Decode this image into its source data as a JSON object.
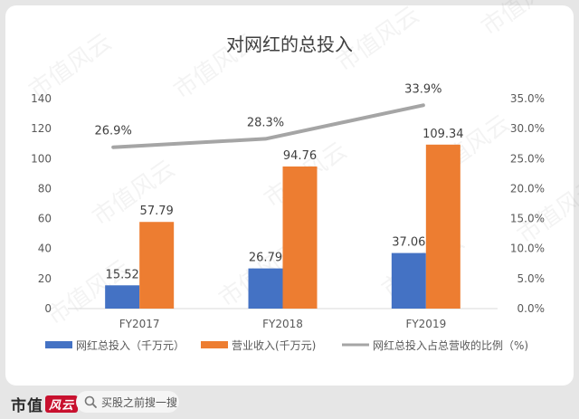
{
  "chart_data": {
    "type": "bar",
    "title": "对网红的总投入",
    "categories": [
      "FY2017",
      "FY2018",
      "FY2019"
    ],
    "series": [
      {
        "name": "网红总投入（千万元）",
        "type": "bar",
        "axis": "left",
        "color": "#4472c4",
        "values": [
          15.52,
          26.79,
          37.06
        ],
        "labels": [
          "15.52",
          "26.79",
          "37.06"
        ]
      },
      {
        "name": "营业收入(千万元)",
        "type": "bar",
        "axis": "left",
        "color": "#ed7d31",
        "values": [
          57.79,
          94.76,
          109.34
        ],
        "labels": [
          "57.79",
          "94.76",
          "109.34"
        ]
      },
      {
        "name": "网红总投入占总营收的比例（%)",
        "type": "line",
        "axis": "right",
        "color": "#a5a5a5",
        "values": [
          26.9,
          28.3,
          33.9
        ],
        "labels": [
          "26.9%",
          "28.3%",
          "33.9%"
        ]
      }
    ],
    "ylim_left": [
      0,
      140
    ],
    "yticks_left": [
      "0",
      "20",
      "40",
      "60",
      "80",
      "100",
      "120",
      "140"
    ],
    "ylim_right": [
      0,
      35
    ],
    "yticks_right": [
      "0.0%",
      "5.0%",
      "10.0%",
      "15.0%",
      "20.0%",
      "25.0%",
      "30.0%",
      "35.0%"
    ],
    "grid": false,
    "legend_position": "bottom"
  },
  "watermark": "市值风云",
  "footer": {
    "brand_text": "市值",
    "brand_mark": "风云",
    "search_text": "买股之前搜一搜"
  }
}
